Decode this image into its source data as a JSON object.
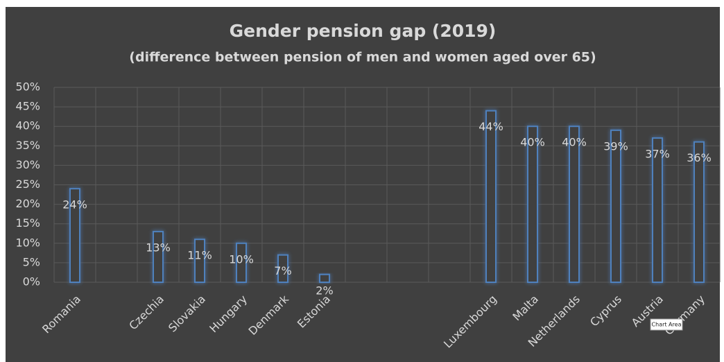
{
  "chart_data": {
    "type": "bar",
    "title": "Gender pension gap (2019)",
    "subtitle": "(difference between pension of men and women aged over 65)",
    "categories": [
      "Romania",
      null,
      "Czechia",
      "Slovakia",
      "Hungary",
      "Denmark",
      "Estonia",
      null,
      null,
      null,
      "Luxembourg",
      "Malta",
      "Netherlands",
      "Cyprus",
      "Austria",
      "Germany"
    ],
    "values": [
      24,
      null,
      13,
      11,
      10,
      7,
      2,
      null,
      null,
      null,
      44,
      40,
      40,
      39,
      37,
      36
    ],
    "value_labels": [
      "24%",
      null,
      "13%",
      "11%",
      "10%",
      "7%",
      "2%",
      null,
      null,
      null,
      "44%",
      "40%",
      "40%",
      "39%",
      "37%",
      "36%"
    ],
    "color": "#4f81bd",
    "ylim": [
      0,
      50
    ],
    "yticks": [
      {
        "value": 0,
        "label": "0%"
      },
      {
        "value": 5,
        "label": "5%"
      },
      {
        "value": 10,
        "label": "10%"
      },
      {
        "value": 15,
        "label": "15%"
      },
      {
        "value": 20,
        "label": "20%"
      },
      {
        "value": 25,
        "label": "25%"
      },
      {
        "value": 30,
        "label": "30%"
      },
      {
        "value": 35,
        "label": "35%"
      },
      {
        "value": 40,
        "label": "40%"
      },
      {
        "value": 45,
        "label": "45%"
      },
      {
        "value": 50,
        "label": "50%"
      }
    ],
    "grid": true,
    "tooltip": "Chart Area"
  }
}
